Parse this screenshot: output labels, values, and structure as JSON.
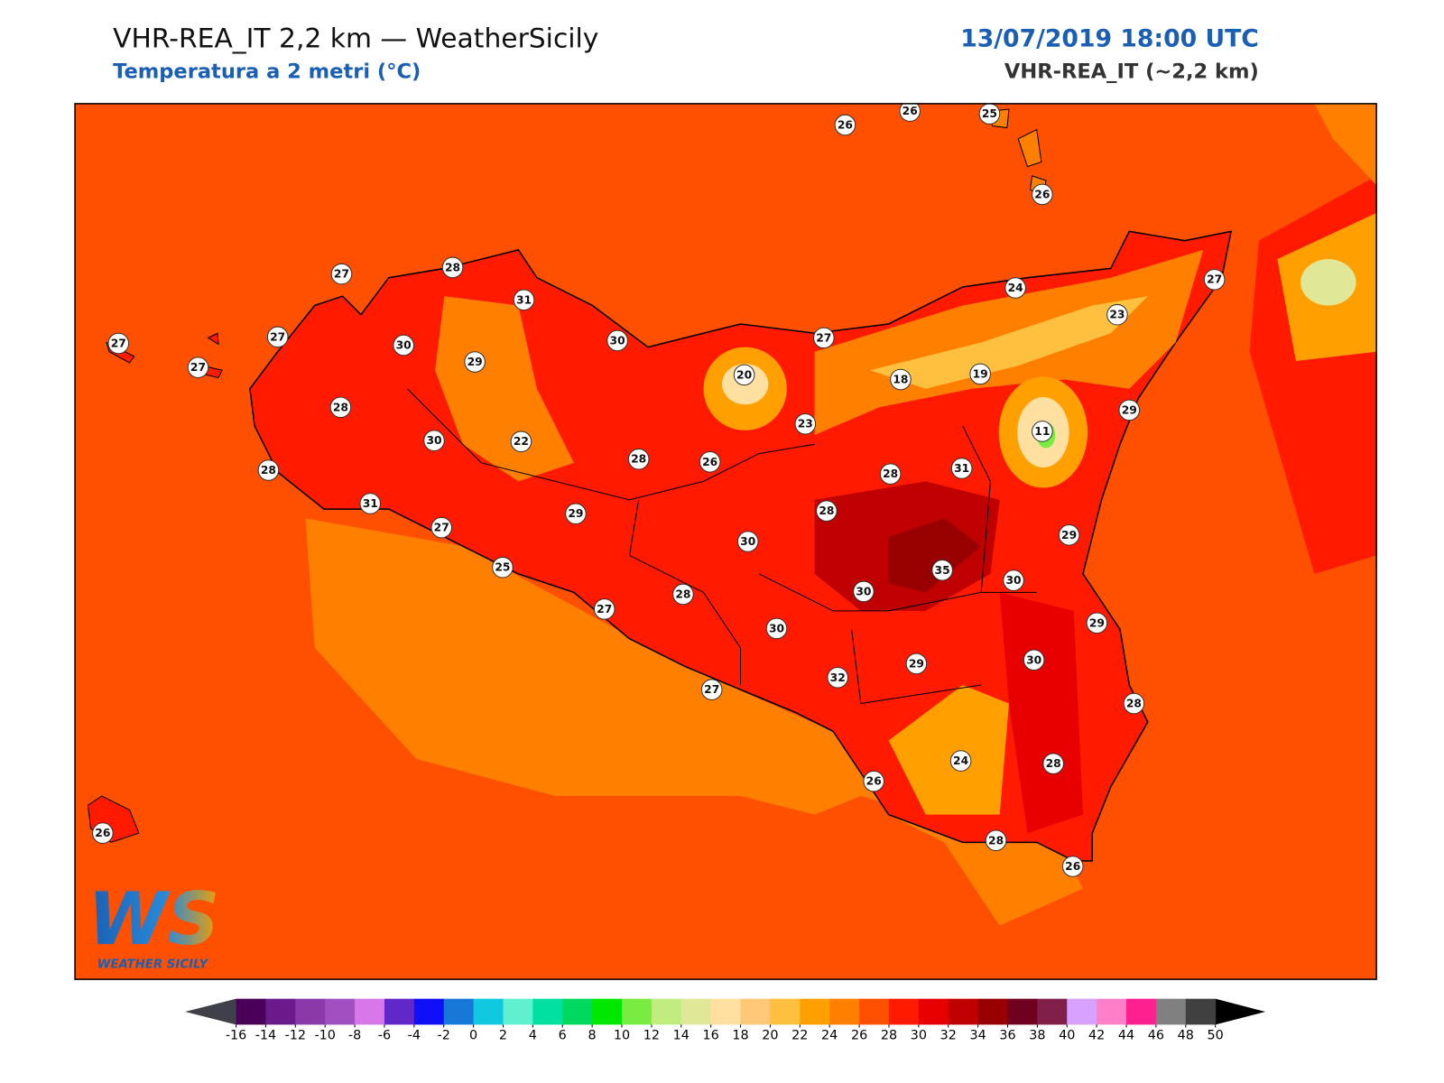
{
  "header": {
    "title": "VHR-REA_IT 2,2 km — WeatherSicily",
    "subtitle": "Temperatura a 2 metri (°C)",
    "datetime": "13/07/2019 18:00 UTC",
    "model": "VHR-REA_IT (~2,2 km)"
  },
  "stations": [
    26,
    26,
    25,
    26,
    27,
    28,
    31,
    27,
    24,
    23,
    27,
    27,
    30,
    30,
    27,
    27,
    29,
    20,
    18,
    19,
    28,
    29,
    23,
    11,
    30,
    22,
    28,
    26,
    31,
    28,
    28,
    31,
    28,
    29,
    27,
    29,
    30,
    25,
    35,
    30,
    30,
    28,
    27,
    29,
    30,
    29,
    30,
    32,
    27,
    28,
    24,
    28,
    26,
    26,
    28,
    26
  ],
  "colorbar": {
    "ticks": [
      -16,
      -14,
      -12,
      -10,
      -8,
      -6,
      -4,
      -2,
      0,
      2,
      4,
      6,
      8,
      10,
      12,
      14,
      16,
      18,
      20,
      22,
      24,
      26,
      28,
      30,
      32,
      34,
      36,
      38,
      40,
      42,
      44,
      46,
      48,
      50
    ],
    "colors": [
      "#4a0058",
      "#6a1a8a",
      "#8a3aa8",
      "#a050c0",
      "#d878e8",
      "#6028c8",
      "#1010f8",
      "#1878d8",
      "#10c8e0",
      "#60f0d0",
      "#00e0a0",
      "#00d860",
      "#00e800",
      "#78ec40",
      "#c0ec80",
      "#e0e898",
      "#ffe0a0",
      "#ffc878",
      "#ffc040",
      "#ffa000",
      "#ff8000",
      "#ff5000",
      "#ff1a00",
      "#e80000",
      "#c00000",
      "#980000",
      "#700020",
      "#802048",
      "#d8a0ff",
      "#ff80c8",
      "#ff2090",
      "#808080",
      "#404040"
    ],
    "under_color": "#404048",
    "over_color": "#000000"
  },
  "logo": {
    "mark": "WS",
    "text": "WEATHER SICILY"
  }
}
